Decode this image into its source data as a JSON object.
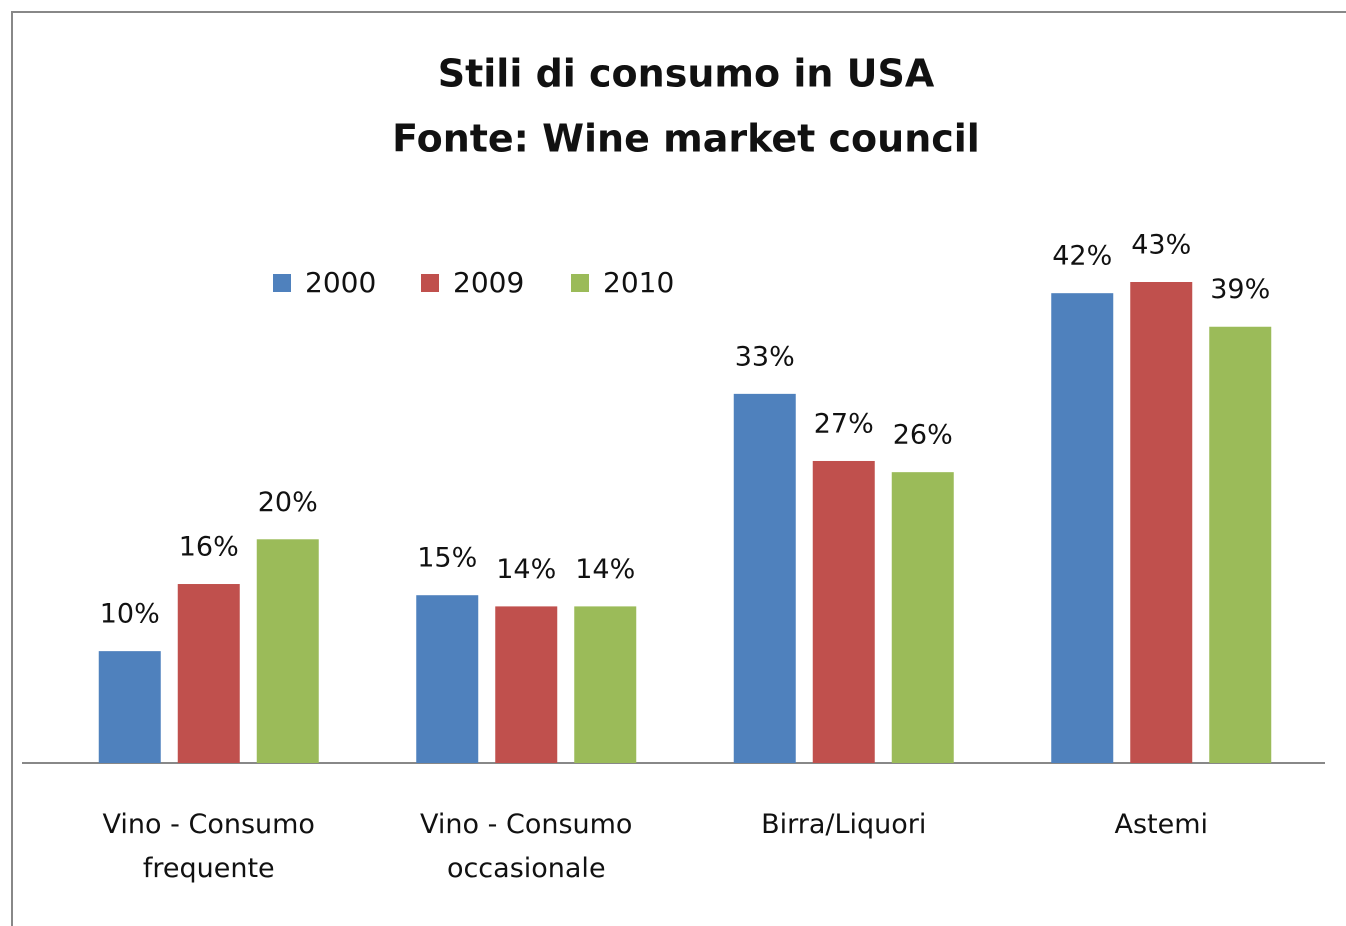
{
  "chart_data": {
    "type": "bar",
    "title": "Stili di consumo in USA",
    "subtitle": "Fonte: Wine market council",
    "categories": [
      "Vino - Consumo frequente",
      "Vino - Consumo occasionale",
      "Birra/Liquori",
      "Astemi"
    ],
    "series": [
      {
        "name": "2000",
        "color": "#4f81bd",
        "values": [
          10,
          15,
          33,
          42
        ],
        "value_labels": [
          "10%",
          "15%",
          "33%",
          "42%"
        ]
      },
      {
        "name": "2009",
        "color": "#c0504d",
        "values": [
          16,
          14,
          27,
          43
        ],
        "value_labels": [
          "16%",
          "14%",
          "27%",
          "43%"
        ]
      },
      {
        "name": "2010",
        "color": "#9bbb59",
        "values": [
          20,
          14,
          26,
          39
        ],
        "value_labels": [
          "20%",
          "14%",
          "26%",
          "39%"
        ]
      }
    ],
    "legend": "top"
  }
}
